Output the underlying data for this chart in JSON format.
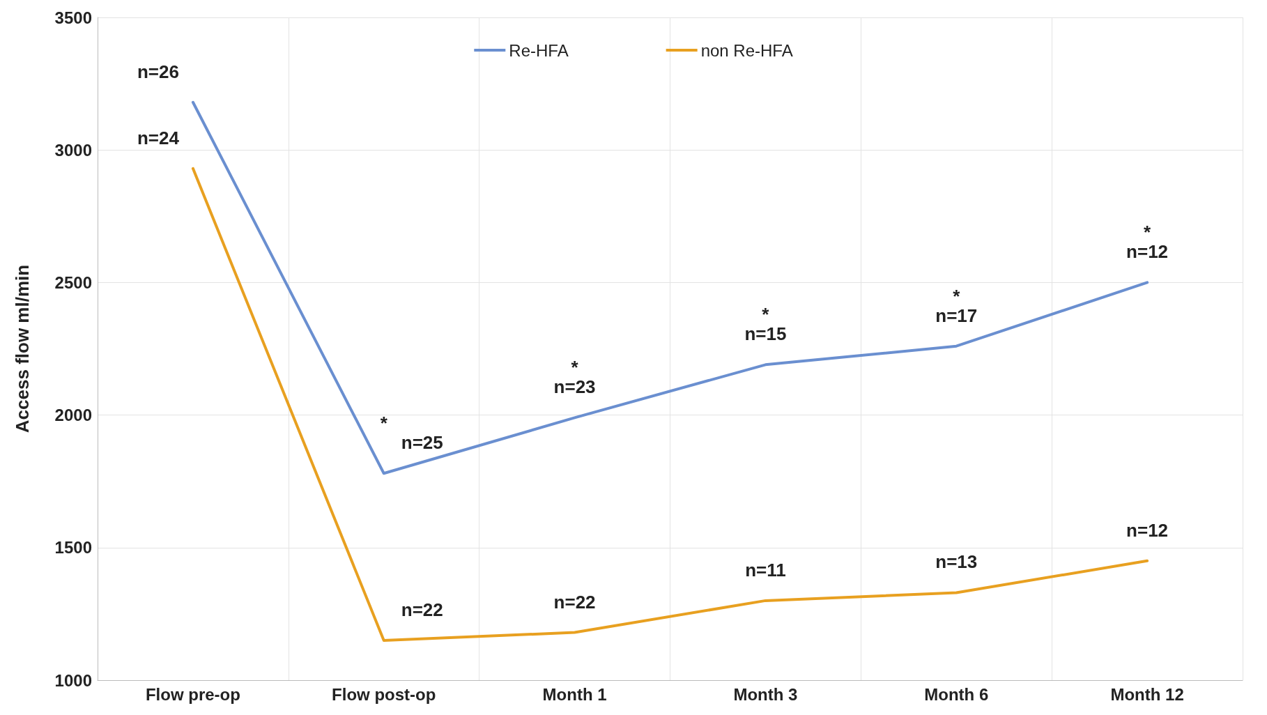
{
  "chart_data": {
    "type": "line",
    "ylabel": "Access flow ml/min",
    "categories": [
      "Flow pre-op",
      "Flow post-op",
      "Month 1",
      "Month 3",
      "Month 6",
      "Month 12"
    ],
    "series": [
      {
        "name": "Re-HFA",
        "color": "#6a8fd0",
        "values": [
          3180,
          1780,
          1990,
          2190,
          2260,
          2500
        ]
      },
      {
        "name": "non Re-HFA",
        "color": "#e8a020",
        "values": [
          2930,
          1150,
          1180,
          1300,
          1330,
          1450
        ]
      }
    ],
    "ylim": [
      1000,
      3500
    ],
    "yticks": [
      1000,
      1500,
      2000,
      2500,
      3000,
      3500
    ],
    "grid": true,
    "legend": "top",
    "marker": "none",
    "line_style": "solid",
    "annotations": [
      {
        "text": "n=26",
        "x": "Flow pre-op",
        "y": 3180
      },
      {
        "text": "n=24",
        "x": "Flow pre-op",
        "y": 2930
      },
      {
        "text": "n=25",
        "x": "Flow post-op",
        "y": 1780
      },
      {
        "text": "*",
        "x": "Flow post-op",
        "y": 1780
      },
      {
        "text": "n=23",
        "x": "Month 1",
        "y": 1990
      },
      {
        "text": "*",
        "x": "Month 1",
        "y": 1990
      },
      {
        "text": "n=15",
        "x": "Month 3",
        "y": 2190
      },
      {
        "text": "*",
        "x": "Month 3",
        "y": 2190
      },
      {
        "text": "n=17",
        "x": "Month 6",
        "y": 2260
      },
      {
        "text": "*",
        "x": "Month 6",
        "y": 2260
      },
      {
        "text": "n=12",
        "x": "Month 12",
        "y": 2500
      },
      {
        "text": "*",
        "x": "Month 12",
        "y": 2500
      },
      {
        "text": "n=22",
        "x": "Flow post-op",
        "y": 1150
      },
      {
        "text": "n=22",
        "x": "Month 1",
        "y": 1180
      },
      {
        "text": "n=11",
        "x": "Month 3",
        "y": 1300
      },
      {
        "text": "n=13",
        "x": "Month 6",
        "y": 1330
      },
      {
        "text": "n=12",
        "x": "Month 12",
        "y": 1450
      }
    ]
  }
}
